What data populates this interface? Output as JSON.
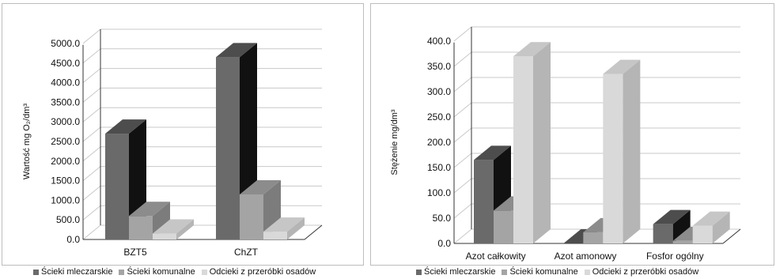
{
  "chart_data": [
    {
      "type": "bar",
      "title": "",
      "ylabel": "Wartość mg O₂/dm³",
      "ylim": [
        0,
        5000
      ],
      "yticks": [
        "0.0",
        "500.0",
        "1000.0",
        "1500.0",
        "2000.0",
        "2500.0",
        "3000.0",
        "3500.0",
        "4000.0",
        "4500.0",
        "5000.0"
      ],
      "categories": [
        "BZT5",
        "ChZT"
      ],
      "series": [
        {
          "name": "Ścieki mleczarskie",
          "values": [
            2700,
            4650
          ]
        },
        {
          "name": "Ścieki komunalne",
          "values": [
            600,
            1150
          ]
        },
        {
          "name": "Odcieki z przeróbki osadów",
          "values": [
            150,
            200
          ]
        }
      ],
      "grid": true,
      "legend_position": "bottom"
    },
    {
      "type": "bar",
      "title": "",
      "ylabel": "Stężenie mg/dm³",
      "ylim": [
        0,
        400
      ],
      "yticks": [
        "0.0",
        "50.0",
        "100.0",
        "150.0",
        "200.0",
        "250.0",
        "300.0",
        "350.0",
        "400.0"
      ],
      "categories": [
        "Azot całkowity",
        "Azot amonowy",
        "Fosfor ogólny"
      ],
      "series": [
        {
          "name": "Ścieki mleczarskie",
          "values": [
            165,
            0,
            38
          ]
        },
        {
          "name": "Ścieki komunalne",
          "values": [
            65,
            22,
            5
          ]
        },
        {
          "name": "Odcieki z przeróbki osadów",
          "values": [
            370,
            335,
            35
          ]
        }
      ],
      "grid": true,
      "legend_position": "bottom"
    }
  ],
  "colors": {
    "series": [
      "#6a6a6a",
      "#a4a4a4",
      "#d9d9d9"
    ],
    "series_side": [
      "#111111",
      "#7c7c7c",
      "#b5b5b5"
    ],
    "series_top": [
      "#4d4d4d",
      "#8c8c8c",
      "#c6c6c6"
    ],
    "grid": "#c8c8c8",
    "frame": "#bdbdbd"
  }
}
